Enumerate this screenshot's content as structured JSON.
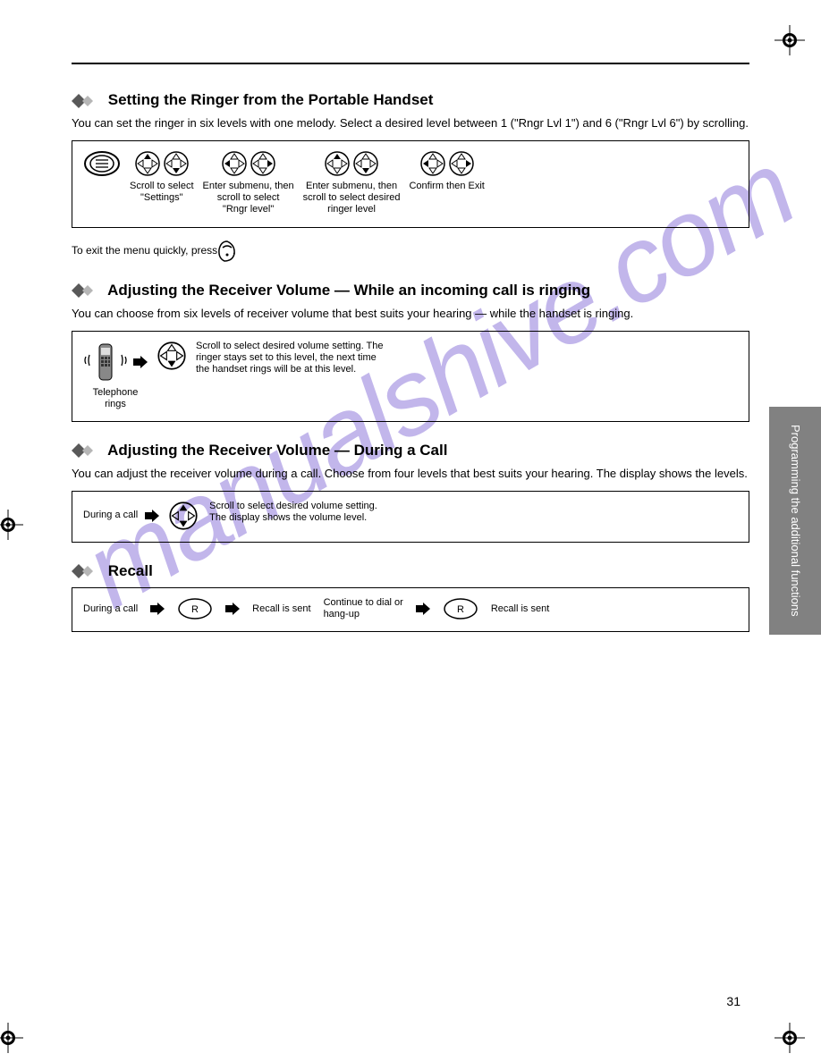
{
  "page": {
    "number": "31",
    "side_tab": "Programming the additional functions",
    "watermark": "manualshive.com"
  },
  "colors": {
    "watermark": "#8670d8",
    "side_tab_bg": "#818181",
    "text": "#000000",
    "rule": "#000000"
  },
  "typography": {
    "title_size": 17,
    "body_size": 13,
    "step_size": 11,
    "hint_size": 12
  },
  "sections": [
    {
      "key": "s1",
      "title": "Setting the Ringer from the Portable Handset",
      "desc": "You can set the ringer in six levels with one melody. Select a desired level between 1 (\"Rngr Lvl 1\") and 6 (\"Rngr Lvl 6\") by scrolling.",
      "box": {
        "steps": [
          {
            "key": "s1a",
            "type": "menu",
            "label": ""
          },
          {
            "key": "s1b",
            "type": "nav_ud",
            "pair": true,
            "label": "Scroll to select\n\"Settings\""
          },
          {
            "key": "s1c",
            "type": "nav_lr",
            "pair": true,
            "label": "Enter submenu, then\nscroll to select\n\"Rngr level\""
          },
          {
            "key": "s1d",
            "type": "nav_ud",
            "pair": true,
            "label": "Enter submenu, then\nscroll to select desired\nringer level"
          },
          {
            "key": "s1e",
            "type": "nav_lr",
            "pair": true,
            "label": "Confirm then Exit"
          }
        ]
      },
      "hint": "To exit the menu quickly, press     ."
    },
    {
      "key": "s2",
      "title": "Adjusting the Receiver Volume — While an incoming call is ringing",
      "desc": "You can choose from six levels of receiver volume that best suits your hearing — while the handset is ringing.",
      "box": {
        "steps": [
          {
            "key": "s2a",
            "type": "phone_ringing_arrow",
            "label": "Telephone\nrings"
          },
          {
            "key": "s2b",
            "type": "nav_ud_single",
            "label": "Scroll to select desired volume setting. The\nringer stays set to this level, the next time\nthe handset rings will be at this level."
          }
        ]
      }
    },
    {
      "key": "s3",
      "title": "Adjusting the Receiver Volume — During a Call",
      "desc": "You can adjust the receiver volume during a call. Choose from four levels that best suits your hearing. The display shows the levels.",
      "box": {
        "steps": [
          {
            "key": "s3a",
            "type": "text_arrow",
            "label": "During a call"
          },
          {
            "key": "s3b",
            "type": "nav_ud_single",
            "label": "Scroll to select desired volume setting.\nThe display shows the volume level."
          }
        ]
      }
    },
    {
      "key": "s4",
      "title": "Recall",
      "box": {
        "steps": [
          {
            "key": "s4a",
            "type": "text_arrow",
            "label": "During a call"
          },
          {
            "key": "s4b",
            "type": "oval_r_arrow",
            "label": "Recall is sent"
          },
          {
            "key": "s4c",
            "type": "text_arrow",
            "label": "Continue to dial or\nhang-up"
          },
          {
            "key": "s4d",
            "type": "oval_r",
            "label": "Recall is sent"
          }
        ]
      }
    }
  ]
}
